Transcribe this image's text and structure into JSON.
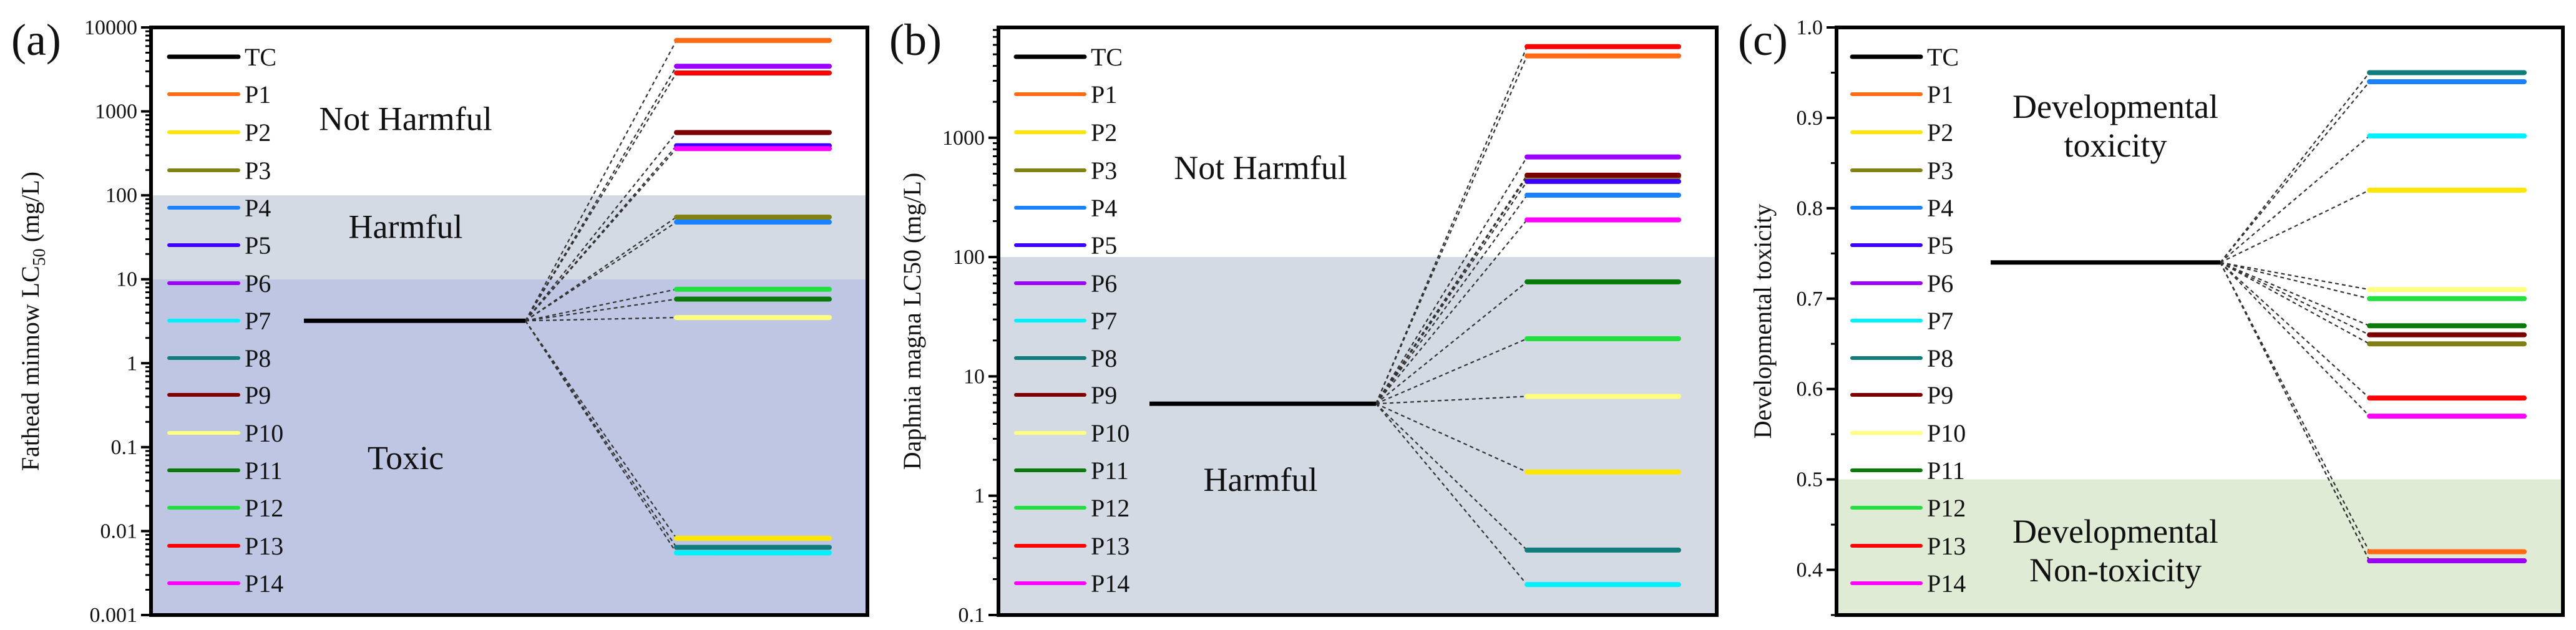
{
  "figure": {
    "series_names": [
      "TC",
      "P1",
      "P2",
      "P3",
      "P4",
      "P5",
      "P6",
      "P7",
      "P8",
      "P9",
      "P10",
      "P11",
      "P12",
      "P13",
      "P14"
    ],
    "series_colors": {
      "TC": "#000000",
      "P1": "#ff6a13",
      "P2": "#ffe600",
      "P3": "#808015",
      "P4": "#1a82ff",
      "P5": "#3d00ff",
      "P6": "#9b00ff",
      "P7": "#00f0ff",
      "P8": "#117c7c",
      "P9": "#7d0000",
      "P10": "#ffff80",
      "P11": "#0a7a0a",
      "P12": "#22e040",
      "P13": "#ff0000",
      "P14": "#ff00ff"
    }
  },
  "chart_data": [
    {
      "panel": "(a)",
      "type": "line",
      "scale": "log",
      "ylabel": "Fathead minnow LC50 (mg/L)",
      "ylabel_main": "Fathead minnow LC",
      "ylabel_sub": "50",
      "ylabel_tail": " (mg/L)",
      "ylim": [
        0.001,
        10000
      ],
      "yticks": [
        "10000",
        "1000",
        "100",
        "10",
        "1",
        "0.1",
        "0.01",
        "0.001"
      ],
      "ytick_values": [
        10000,
        1000,
        100,
        10,
        1,
        0.1,
        0.01,
        0.001
      ],
      "regions": [
        {
          "label": "Not Harmful",
          "from": 100,
          "to": 10000,
          "color": "#ffffff"
        },
        {
          "label": "Harmful",
          "from": 10,
          "to": 100,
          "color": "#d4dae4"
        },
        {
          "label": "Toxic",
          "from": 0.001,
          "to": 10,
          "color": "#bfc6e4"
        }
      ],
      "region_label_positions": [
        {
          "label": "Not Harmful",
          "y_value": 600
        },
        {
          "label": "Harmful",
          "y_value": 31
        },
        {
          "label": "Toxic",
          "y_value": 0.055
        }
      ],
      "values": {
        "TC": 3.2,
        "P1": 7000,
        "P2": 0.0082,
        "P3": 55,
        "P4": 48,
        "P5": 390,
        "P6": 3450,
        "P7": 0.0055,
        "P8": 0.0064,
        "P9": 560,
        "P10": 3.5,
        "P11": 5.8,
        "P12": 7.6,
        "P13": 2870,
        "P14": 360
      }
    },
    {
      "panel": "(b)",
      "type": "line",
      "scale": "log",
      "ylabel": "Daphnia magna LC50 (mg/L)",
      "ylim": [
        0.1,
        8400
      ],
      "yticks": [
        "1000",
        "100",
        "10",
        "1",
        "0.1"
      ],
      "ytick_values": [
        1000,
        100,
        10,
        1,
        0.1
      ],
      "regions": [
        {
          "label": "Not Harmful",
          "from": 100,
          "to": 8400,
          "color": "#ffffff"
        },
        {
          "label": "Harmful",
          "from": 0.1,
          "to": 100,
          "color": "#d4dae4"
        }
      ],
      "region_label_positions": [
        {
          "label": "Not Harmful",
          "y_value": 450
        },
        {
          "label": "Harmful",
          "y_value": 1.1
        }
      ],
      "values": {
        "TC": 5.9,
        "P1": 4850,
        "P2": 1.58,
        "P3": 470,
        "P4": 330,
        "P5": 430,
        "P6": 690,
        "P7": 0.18,
        "P8": 0.35,
        "P9": 485,
        "P10": 6.8,
        "P11": 62,
        "P12": 20.7,
        "P13": 5800,
        "P14": 205
      }
    },
    {
      "panel": "(c)",
      "type": "line",
      "scale": "linear",
      "ylabel": "Developmental toxicity",
      "ylim": [
        0.35,
        1.0
      ],
      "yticks": [
        "1.0",
        "0.9",
        "0.8",
        "0.7",
        "0.6",
        "0.5",
        "0.4"
      ],
      "ytick_values": [
        1.0,
        0.9,
        0.8,
        0.7,
        0.6,
        0.5,
        0.4
      ],
      "regions": [
        {
          "label": "Developmental toxicity",
          "from": 0.5,
          "to": 1.0,
          "color": "#ffffff"
        },
        {
          "label": "Developmental Non-toxicity",
          "from": 0.35,
          "to": 0.5,
          "color": "#e0ebd6"
        }
      ],
      "region_label_positions": [
        {
          "label": "Developmental\ntoxicity",
          "y_value": 0.9
        },
        {
          "label": "Developmental\nNon-toxicity",
          "y_value": 0.43
        }
      ],
      "values": {
        "TC": 0.74,
        "P1": 0.42,
        "P2": 0.82,
        "P3": 0.65,
        "P4": 0.94,
        "P5": 0.41,
        "P6": 0.41,
        "P7": 0.88,
        "P8": 0.95,
        "P9": 0.66,
        "P10": 0.71,
        "P11": 0.67,
        "P12": 0.7,
        "P13": 0.59,
        "P14": 0.57
      }
    }
  ],
  "text": {
    "panel_a": "(a)",
    "panel_b": "(b)",
    "panel_c": "(c)"
  }
}
